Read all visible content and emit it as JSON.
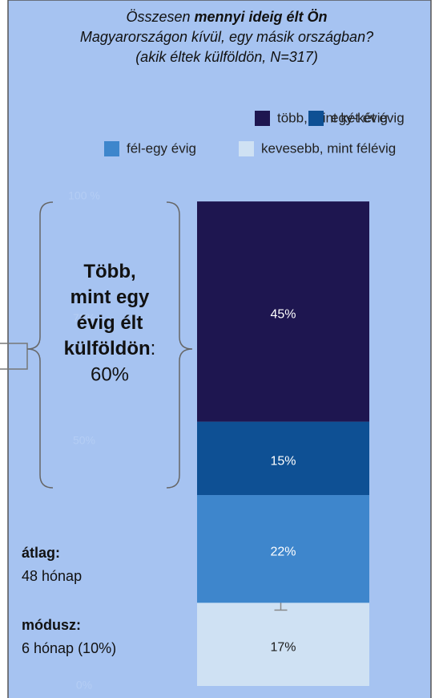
{
  "chart_data": {
    "type": "bar",
    "stacked": true,
    "title_lines": [
      [
        "Összesen ",
        "mennyi ideig élt Ön"
      ],
      [
        "Magyarországon kívül, egy másik országban?"
      ],
      [
        "(akik éltek külföldön, N=317)"
      ]
    ],
    "series": [
      {
        "name": "több, mint két évig",
        "color": "#1e1650",
        "label_color": "#ffffff",
        "values": [
          45
        ],
        "value_labels": [
          "45%"
        ]
      },
      {
        "name": "egy-két évig",
        "color": "#0e5094",
        "label_color": "#ffffff",
        "values": [
          15
        ],
        "value_labels": [
          "15%"
        ]
      },
      {
        "name": "fél-egy évig",
        "color": "#3e86cc",
        "label_color": "#ffffff",
        "values": [
          22
        ],
        "value_labels": [
          "22%"
        ]
      },
      {
        "name": "kevesebb, mint félévig",
        "color": "#cfe1f3",
        "label_color": "#1a1a1a",
        "values": [
          17
        ],
        "value_labels": [
          "17%"
        ],
        "error": 1.5
      }
    ],
    "ylim": [
      0,
      100
    ],
    "yticks": [
      {
        "value": 0,
        "label": "0%"
      },
      {
        "value": 50,
        "label": "50%"
      },
      {
        "value": 75,
        "label": "75%"
      },
      {
        "value": 100,
        "label": "100 %"
      }
    ],
    "brace": {
      "bold_lines": [
        "Több,",
        "mint egy",
        "évig élt",
        "külföldön"
      ],
      "suffix": ":",
      "value_text": "60%"
    },
    "stats": [
      {
        "label": "átlag:",
        "value": "48 hónap"
      },
      {
        "label": "módusz:",
        "value": "6 hónap (10%)"
      }
    ]
  }
}
